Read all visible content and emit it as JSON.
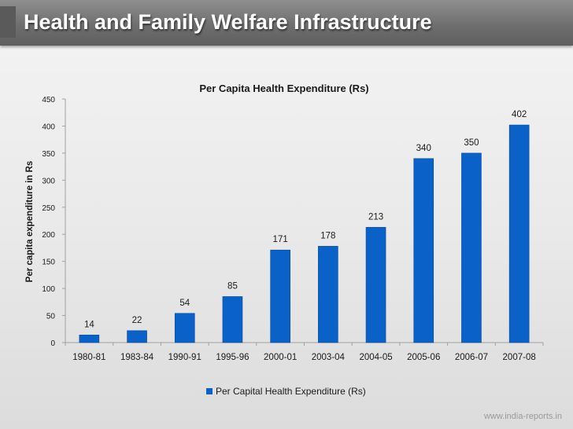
{
  "slide": {
    "title": "Health and Family Welfare Infrastructure",
    "footer": "www.india-reports.in"
  },
  "colors": {
    "bar": "#0a62c9",
    "bar_dark": "#0648a0",
    "axis": "#a0a0a0",
    "title_bar": "#6f6f6f"
  },
  "chart_data": {
    "type": "bar",
    "title": "Per Capita Health Expenditure (Rs)",
    "ylabel": "Per capita expenditure in Rs",
    "xlabel": "",
    "ylim": [
      0,
      450
    ],
    "yticks": [
      0,
      50,
      100,
      150,
      200,
      250,
      300,
      350,
      400,
      450
    ],
    "grid": false,
    "legend_position": "bottom",
    "categories": [
      "1980-81",
      "1983-84",
      "1990-91",
      "1995-96",
      "2000-01",
      "2003-04",
      "2004-05",
      "2005-06",
      "2006-07",
      "2007-08"
    ],
    "series": [
      {
        "name": "Per Capital Health Expenditure (Rs)",
        "values": [
          14,
          22,
          54,
          85,
          171,
          178,
          213,
          340,
          350,
          402
        ]
      }
    ]
  }
}
